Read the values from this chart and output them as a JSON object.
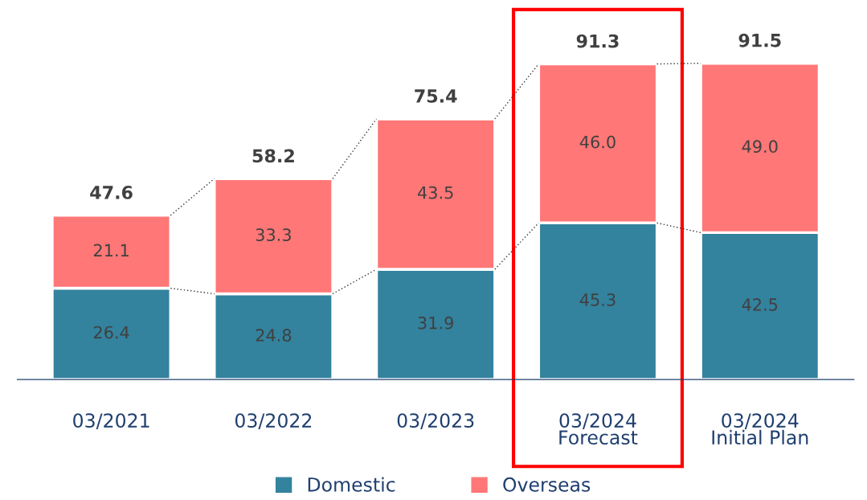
{
  "chart_data": {
    "type": "bar",
    "stacked": true,
    "categories": [
      "03/2021",
      "03/2022",
      "03/2023",
      "03/2024\nForecast",
      "03/2024\nInitial Plan"
    ],
    "series": [
      {
        "name": "Domestic",
        "color": "#33829e",
        "values": [
          26.4,
          24.8,
          31.9,
          45.3,
          42.5
        ]
      },
      {
        "name": "Overseas",
        "color": "#ff7777",
        "values": [
          21.1,
          33.3,
          43.5,
          46.0,
          49.0
        ],
        "value_labels": [
          "21.1",
          "33.3",
          "43.5",
          "46.0",
          "49.0"
        ]
      }
    ],
    "data_labels": true,
    "totals": [
      "47.6",
      "58.2",
      "75.4",
      "91.3",
      "91.5"
    ],
    "legend": "bottom"
  }
}
